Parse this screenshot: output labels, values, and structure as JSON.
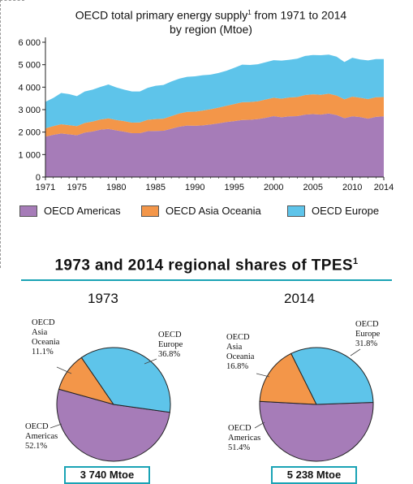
{
  "colors": {
    "americas": "#a67cb8",
    "asia_oceania": "#f39649",
    "europe": "#5ec4ea",
    "accent": "#1aa3b5"
  },
  "chart_title": {
    "text": "OECD total primary energy supply",
    "sup": "1",
    "text2": " from 1971 to 2014",
    "line2": "by region (Mtoe)"
  },
  "chart_data": [
    {
      "type": "area",
      "stacked": true,
      "x": [
        1971,
        1972,
        1973,
        1974,
        1975,
        1976,
        1977,
        1978,
        1979,
        1980,
        1981,
        1982,
        1983,
        1984,
        1985,
        1986,
        1987,
        1988,
        1989,
        1990,
        1991,
        1992,
        1993,
        1994,
        1995,
        1996,
        1997,
        1998,
        1999,
        2000,
        2001,
        2002,
        2003,
        2004,
        2005,
        2006,
        2007,
        2008,
        2009,
        2010,
        2011,
        2012,
        2013,
        2014
      ],
      "series": [
        {
          "name": "OECD Americas",
          "values": [
            1800,
            1880,
            1940,
            1900,
            1860,
            1980,
            2030,
            2110,
            2140,
            2080,
            2020,
            1950,
            1950,
            2040,
            2050,
            2060,
            2150,
            2240,
            2290,
            2280,
            2300,
            2340,
            2390,
            2450,
            2490,
            2540,
            2550,
            2580,
            2640,
            2710,
            2660,
            2700,
            2710,
            2780,
            2800,
            2780,
            2830,
            2760,
            2620,
            2700,
            2670,
            2600,
            2680,
            2700
          ]
        },
        {
          "name": "OECD Asia Oceania",
          "values": [
            370,
            390,
            410,
            410,
            410,
            430,
            440,
            450,
            470,
            460,
            470,
            470,
            480,
            510,
            530,
            540,
            560,
            590,
            610,
            630,
            660,
            680,
            700,
            720,
            760,
            790,
            790,
            790,
            810,
            820,
            830,
            840,
            850,
            870,
            880,
            880,
            880,
            870,
            840,
            880,
            860,
            870,
            870,
            860
          ]
        },
        {
          "name": "OECD Europe",
          "values": [
            1180,
            1250,
            1390,
            1380,
            1330,
            1400,
            1420,
            1450,
            1510,
            1450,
            1400,
            1390,
            1380,
            1420,
            1480,
            1500,
            1540,
            1550,
            1560,
            1570,
            1570,
            1540,
            1540,
            1560,
            1610,
            1670,
            1650,
            1650,
            1660,
            1670,
            1690,
            1680,
            1710,
            1740,
            1750,
            1760,
            1740,
            1730,
            1660,
            1730,
            1700,
            1720,
            1700,
            1690
          ]
        }
      ],
      "ylim": [
        0,
        6000
      ],
      "yticks": [
        "0",
        "1 000",
        "2 000",
        "3 000",
        "4 000",
        "5 000",
        "6 000"
      ],
      "xticks": [
        "1971",
        "1975",
        "1980",
        "1985",
        "1990",
        "1995",
        "2000",
        "2005",
        "2010",
        "2014"
      ],
      "grid": false
    },
    {
      "type": "pie",
      "title": "1973",
      "slices": [
        {
          "label": "OECD Americas",
          "value": 52.1,
          "text": [
            "OECD",
            "Americas",
            "52.1%"
          ]
        },
        {
          "label": "OECD Asia Oceania",
          "value": 11.1,
          "text": [
            "OECD",
            "Asia",
            "Oceania",
            "11.1%"
          ]
        },
        {
          "label": "OECD Europe",
          "value": 36.8,
          "text": [
            "OECD",
            "Europe",
            "36.8%"
          ]
        }
      ],
      "total": "3 740 Mtoe"
    },
    {
      "type": "pie",
      "title": "2014",
      "slices": [
        {
          "label": "OECD Americas",
          "value": 51.4,
          "text": [
            "OECD",
            "Americas",
            "51.4%"
          ]
        },
        {
          "label": "OECD Asia Oceania",
          "value": 16.8,
          "text": [
            "OECD",
            "Asia",
            "Oceania",
            "16.8%"
          ]
        },
        {
          "label": "OECD Europe",
          "value": 31.8,
          "text": [
            "OECD",
            "Europe",
            "31.8%"
          ]
        }
      ],
      "total": "5 238 Mtoe"
    }
  ],
  "legend": [
    "OECD Americas",
    "OECD Asia Oceania",
    "OECD Europe"
  ],
  "section_title": {
    "text": "1973 and 2014 regional shares of TPES",
    "sup": "1"
  }
}
